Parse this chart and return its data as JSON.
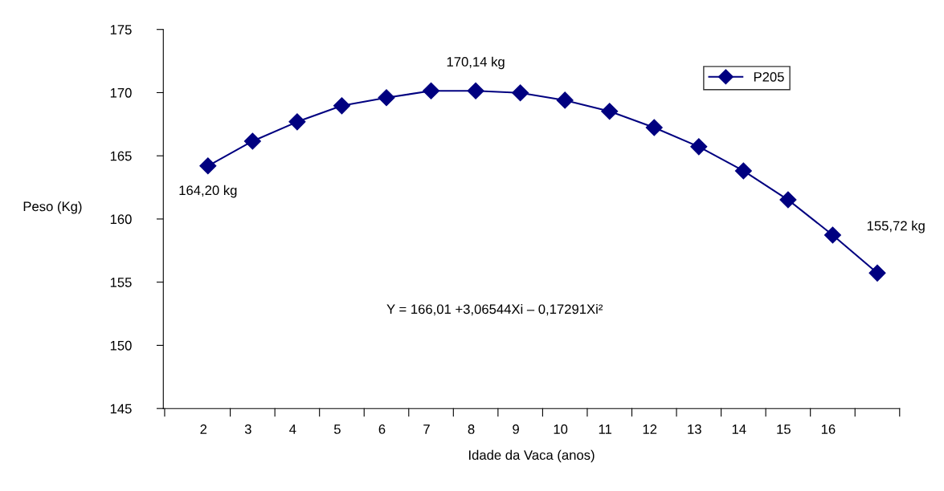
{
  "chart_data": {
    "type": "line",
    "xlabel": "Idade da Vaca (anos)",
    "ylabel": "Peso (Kg)",
    "categories": [
      "2",
      "3",
      "4",
      "5",
      "6",
      "7",
      "8",
      "9",
      "10",
      "11",
      "12",
      "13",
      "14",
      "15",
      "16",
      null
    ],
    "series": [
      {
        "name": "P205",
        "color": "#000080",
        "values": [
          164.2,
          166.16,
          167.69,
          168.96,
          169.6,
          170.14,
          170.14,
          169.98,
          169.4,
          168.52,
          167.24,
          165.72,
          163.81,
          161.52,
          158.73,
          155.72
        ]
      }
    ],
    "ylim": [
      145,
      175
    ],
    "yticks": [
      145,
      150,
      155,
      160,
      165,
      170,
      175
    ],
    "marker": "diamond",
    "line_style": "solid",
    "grid": false,
    "legend": "top right",
    "annotations": [
      {
        "text": "164,20 kg",
        "x": "2",
        "y": 164.2
      },
      {
        "text": "170,14 kg",
        "x": "8",
        "y": 170.14
      },
      "155,72 kg",
      "Y = 166,01 +3,06544Xi – 0,17291Xi²"
    ]
  }
}
